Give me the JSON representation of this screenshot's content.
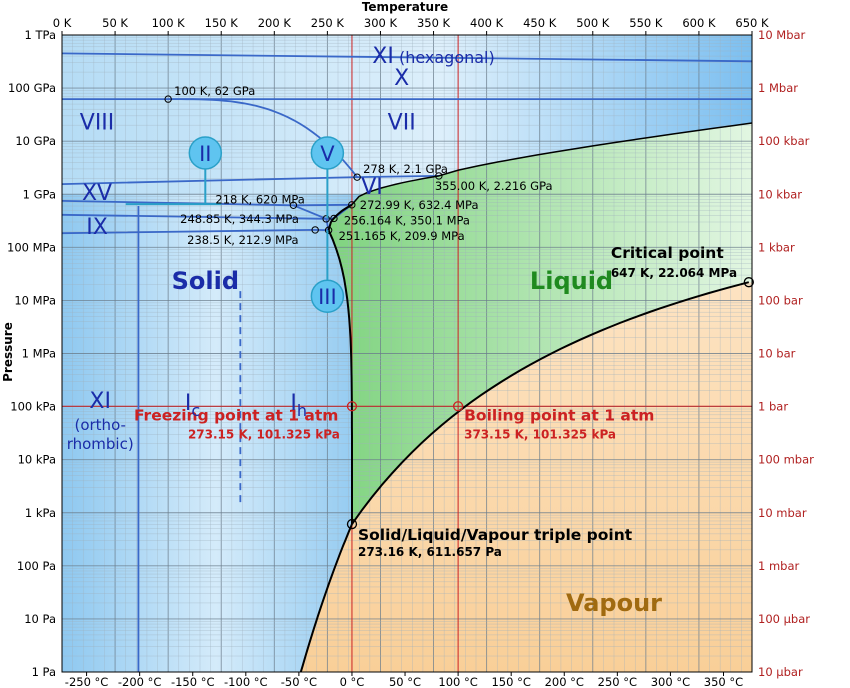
{
  "chart_data": {
    "type": "phase-diagram",
    "title": "",
    "x_axis_top": {
      "label": "Temperature",
      "unit": "K",
      "min": 0,
      "max": 650,
      "step": 50,
      "tick_labels": [
        "0 K",
        "50 K",
        "100 K",
        "150 K",
        "200 K",
        "250 K",
        "300 K",
        "350 K",
        "400 K",
        "450 K",
        "500 K",
        "550 K",
        "600 K",
        "650 K"
      ]
    },
    "x_axis_bottom": {
      "unit": "°C",
      "tick_values_c": [
        -250,
        -200,
        -150,
        -100,
        -50,
        0,
        50,
        100,
        150,
        200,
        250,
        300,
        350
      ],
      "tick_labels": [
        "-250 °C",
        "-200 °C",
        "-150 °C",
        "-100 °C",
        "-50 °C",
        "0 °C",
        "50 °C",
        "100 °C",
        "150 °C",
        "200 °C",
        "250 °C",
        "300 °C",
        "350 °C"
      ]
    },
    "y_axis_left": {
      "label": "Pressure",
      "scale": "log",
      "min_pa": 1,
      "max_pa": 1000000000000.0,
      "tick_labels": [
        "1 Pa",
        "10 Pa",
        "100 Pa",
        "1 kPa",
        "10 kPa",
        "100 kPa",
        "1 MPa",
        "10 MPa",
        "100 MPa",
        "1 GPa",
        "10 GPa",
        "100 GPa",
        "1 TPa"
      ]
    },
    "y_axis_right": {
      "tick_labels": [
        "10 µbar",
        "100 µbar",
        "1 mbar",
        "10 mbar",
        "100 mbar",
        "1 bar",
        "10 bar",
        "100 bar",
        "1 kbar",
        "10 kbar",
        "100 kbar",
        "1 Mbar",
        "10 Mbar"
      ]
    },
    "regions": [
      {
        "label": "Solid",
        "color": "#1a2ca8"
      },
      {
        "label": "Liquid",
        "color": "#1f8a1f"
      },
      {
        "label": "Vapour",
        "color": "#a06a10"
      }
    ],
    "phase_labels": [
      {
        "label": "XI (hexagonal)",
        "t_k": 350,
        "p_pa": 400000000000.0
      },
      {
        "label": "X",
        "t_k": 320,
        "p_pa": 160000000000.0
      },
      {
        "label": "VIII",
        "t_k": 33,
        "p_pa": 23000000000.0
      },
      {
        "label": "VII",
        "t_k": 320,
        "p_pa": 23000000000.0
      },
      {
        "label": "VI",
        "t_k": 292,
        "p_pa": 1400000000.0
      },
      {
        "label": "XV",
        "t_k": 33,
        "p_pa": 1100000000.0
      },
      {
        "label": "IX",
        "t_k": 33,
        "p_pa": 250000000.0
      },
      {
        "label": "XI",
        "t_k": 36,
        "p_pa": 130000.0
      },
      {
        "label": "(ortho-",
        "t_k": 36,
        "p_pa": 45000.0
      },
      {
        "label": "rhombic)",
        "t_k": 36,
        "p_pa": 20000.0
      },
      {
        "label": "Ic",
        "t_k": 123,
        "p_pa": 120000.0
      },
      {
        "label": "Ih",
        "t_k": 223,
        "p_pa": 120000.0
      }
    ],
    "circled_labels": [
      {
        "label": "II",
        "t_k": 135,
        "p_pa": 6000000000.0
      },
      {
        "label": "V",
        "t_k": 250,
        "p_pa": 6000000000.0
      },
      {
        "label": "III",
        "t_k": 250,
        "p_pa": 12000000.0
      }
    ],
    "points": [
      {
        "label": "100 K, 62 GPa",
        "t_k": 100,
        "p_pa": 62000000000.0
      },
      {
        "label": "278 K, 2.1 GPa",
        "t_k": 278,
        "p_pa": 2100000000.0
      },
      {
        "label": "355.00 K, 2.216 GPa",
        "t_k": 355,
        "p_pa": 2216000000.0
      },
      {
        "label": "218 K, 620 MPa",
        "t_k": 218,
        "p_pa": 620000000.0
      },
      {
        "label": "272.99 K, 632.4 MPa",
        "t_k": 272.99,
        "p_pa": 632400000.0
      },
      {
        "label": "248.85 K, 344.3 MPa",
        "t_k": 248.85,
        "p_pa": 344300000.0
      },
      {
        "label": "256.164 K, 350.1 MPa",
        "t_k": 256.164,
        "p_pa": 350100000.0
      },
      {
        "label": "238.5 K, 212.9 MPa",
        "t_k": 238.5,
        "p_pa": 212900000.0
      },
      {
        "label": "251.165 K, 209.9 MPa",
        "t_k": 251.165,
        "p_pa": 209900000.0
      }
    ],
    "key_points": [
      {
        "title": "Critical point",
        "subtitle": "647 K, 22.064 MPa",
        "t_k": 647,
        "p_pa": 22064000.0
      },
      {
        "title": "Freezing point at 1 atm",
        "subtitle": "273.15 K, 101.325 kPa",
        "t_k": 273.15,
        "p_pa": 101325
      },
      {
        "title": "Boiling point at 1 atm",
        "subtitle": "373.15 K, 101.325 kPa",
        "t_k": 373.15,
        "p_pa": 101325
      },
      {
        "title": "Solid/Liquid/Vapour triple point",
        "subtitle": "273.16 K, 611.657 Pa",
        "t_k": 273.16,
        "p_pa": 611.657
      }
    ],
    "colors": {
      "solid_fill": "#a6d4f2",
      "liquid_fill": "#94dd94",
      "vapour_fill": "#fbd7a6",
      "phase_line": "#3a68c8",
      "boundary": "#000000",
      "reference_line": "#cc2222",
      "label_dark_blue": "#1a2ca8",
      "right_axis": "#b02020"
    }
  }
}
